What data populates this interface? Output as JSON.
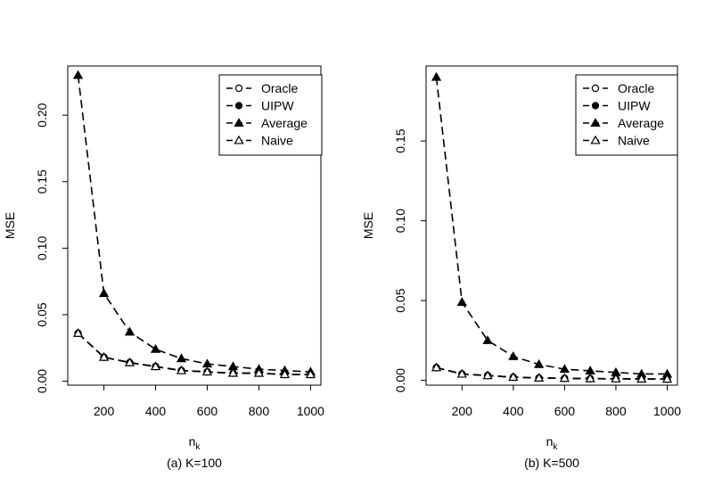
{
  "legend_entries": [
    {
      "label": "Oracle",
      "marker": "open-circle"
    },
    {
      "label": "UIPW",
      "marker": "filled-circle"
    },
    {
      "label": "Average",
      "marker": "filled-triangle"
    },
    {
      "label": "Naive",
      "marker": "open-triangle"
    }
  ],
  "chart_data": [
    {
      "type": "line",
      "caption": "(a) K=100",
      "xlabel": "n",
      "xlabel_subscript": "k",
      "ylabel": "MSE",
      "xlim": [
        60,
        1040
      ],
      "ylim": [
        -0.003,
        0.237
      ],
      "xticks": [
        200,
        400,
        600,
        800,
        1000
      ],
      "yticks": [
        0.0,
        0.05,
        0.1,
        0.15,
        0.2
      ],
      "ytick_labels": [
        "0.00",
        "0.05",
        "0.10",
        "0.15",
        "0.20"
      ],
      "legend_position": "top-right",
      "grid": false,
      "x": [
        100,
        200,
        300,
        400,
        500,
        600,
        700,
        800,
        900,
        1000
      ],
      "series": [
        {
          "name": "Oracle",
          "marker": "open-circle",
          "values": [
            0.036,
            0.018,
            0.014,
            0.011,
            0.008,
            0.007,
            0.006,
            0.006,
            0.005,
            0.005
          ]
        },
        {
          "name": "UIPW",
          "marker": "filled-circle",
          "values": [
            0.036,
            0.018,
            0.014,
            0.011,
            0.008,
            0.007,
            0.006,
            0.006,
            0.005,
            0.005
          ]
        },
        {
          "name": "Average",
          "marker": "filled-triangle",
          "values": [
            0.23,
            0.066,
            0.037,
            0.024,
            0.017,
            0.013,
            0.011,
            0.009,
            0.008,
            0.007
          ]
        },
        {
          "name": "Naive",
          "marker": "open-triangle",
          "values": [
            0.036,
            0.018,
            0.014,
            0.011,
            0.008,
            0.007,
            0.006,
            0.006,
            0.005,
            0.005
          ]
        }
      ]
    },
    {
      "type": "line",
      "caption": "(b) K=500",
      "xlabel": "n",
      "xlabel_subscript": "k",
      "ylabel": "MSE",
      "xlim": [
        60,
        1040
      ],
      "ylim": [
        -0.003,
        0.197
      ],
      "xticks": [
        200,
        400,
        600,
        800,
        1000
      ],
      "yticks": [
        0.0,
        0.05,
        0.1,
        0.15
      ],
      "ytick_labels": [
        "0.00",
        "0.05",
        "0.10",
        "0.15"
      ],
      "legend_position": "top-right",
      "grid": false,
      "x": [
        100,
        200,
        300,
        400,
        500,
        600,
        700,
        800,
        900,
        1000
      ],
      "series": [
        {
          "name": "Oracle",
          "marker": "open-circle",
          "values": [
            0.008,
            0.004,
            0.003,
            0.002,
            0.0015,
            0.0013,
            0.0011,
            0.001,
            0.0009,
            0.0008
          ]
        },
        {
          "name": "UIPW",
          "marker": "filled-circle",
          "values": [
            0.008,
            0.004,
            0.003,
            0.002,
            0.0015,
            0.0013,
            0.0011,
            0.001,
            0.0009,
            0.0008
          ]
        },
        {
          "name": "Average",
          "marker": "filled-triangle",
          "values": [
            0.19,
            0.049,
            0.025,
            0.015,
            0.01,
            0.007,
            0.006,
            0.005,
            0.004,
            0.004
          ]
        },
        {
          "name": "Naive",
          "marker": "open-triangle",
          "values": [
            0.008,
            0.004,
            0.003,
            0.002,
            0.0015,
            0.0013,
            0.0011,
            0.001,
            0.0009,
            0.0008
          ]
        }
      ]
    }
  ]
}
